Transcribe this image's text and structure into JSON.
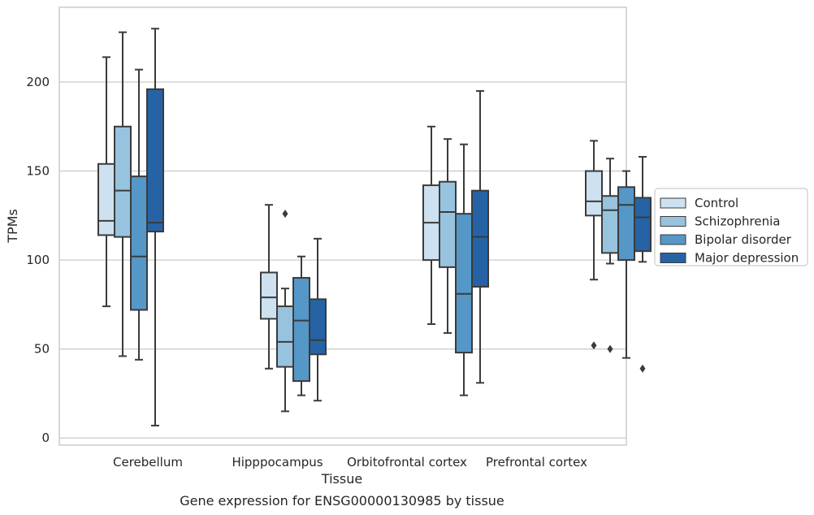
{
  "caption": "Gene expression for ENSG00000130985 by tissue",
  "colors": {
    "Control": "#cde1f0",
    "Schizophrenia": "#97c3df",
    "Bipolar disorder": "#5597c7",
    "Major depression": "#2563a5",
    "grid": "#cccccc",
    "frame": "#cccccc",
    "box_edge": "#3b3b3b"
  },
  "chart_data": {
    "type": "box",
    "xlabel": "Tissue",
    "ylabel": "TPMs",
    "ylim": [
      -4,
      242
    ],
    "yticks": [
      0,
      50,
      100,
      150,
      200
    ],
    "grid": true,
    "legend_position": "right-outside",
    "categories": [
      "Cerebellum",
      "Hipppocampus",
      "Orbitofrontal cortex",
      "Prefrontal cortex"
    ],
    "series": [
      {
        "name": "Control",
        "boxes": [
          {
            "whisker_low": 74,
            "q1": 114,
            "median": 122,
            "q3": 154,
            "whisker_high": 214,
            "outliers": []
          },
          {
            "whisker_low": 39,
            "q1": 67,
            "median": 79,
            "q3": 93,
            "whisker_high": 131,
            "outliers": []
          },
          {
            "whisker_low": 64,
            "q1": 100,
            "median": 121,
            "q3": 142,
            "whisker_high": 175,
            "outliers": []
          },
          {
            "whisker_low": 89,
            "q1": 125,
            "median": 133,
            "q3": 150,
            "whisker_high": 167,
            "outliers": [
              52
            ]
          }
        ]
      },
      {
        "name": "Schizophrenia",
        "boxes": [
          {
            "whisker_low": 46,
            "q1": 113,
            "median": 139,
            "q3": 175,
            "whisker_high": 228,
            "outliers": []
          },
          {
            "whisker_low": 15,
            "q1": 40,
            "median": 54,
            "q3": 74,
            "whisker_high": 84,
            "outliers": [
              126
            ]
          },
          {
            "whisker_low": 59,
            "q1": 96,
            "median": 127,
            "q3": 144,
            "whisker_high": 168,
            "outliers": []
          },
          {
            "whisker_low": 98,
            "q1": 104,
            "median": 128,
            "q3": 136,
            "whisker_high": 157,
            "outliers": [
              50
            ]
          }
        ]
      },
      {
        "name": "Bipolar disorder",
        "boxes": [
          {
            "whisker_low": 44,
            "q1": 72,
            "median": 102,
            "q3": 147,
            "whisker_high": 207,
            "outliers": []
          },
          {
            "whisker_low": 24,
            "q1": 32,
            "median": 66,
            "q3": 90,
            "whisker_high": 102,
            "outliers": []
          },
          {
            "whisker_low": 24,
            "q1": 48,
            "median": 81,
            "q3": 126,
            "whisker_high": 165,
            "outliers": []
          },
          {
            "whisker_low": 45,
            "q1": 100,
            "median": 131,
            "q3": 141,
            "whisker_high": 150,
            "outliers": []
          }
        ]
      },
      {
        "name": "Major depression",
        "boxes": [
          {
            "whisker_low": 7,
            "q1": 116,
            "median": 121,
            "q3": 196,
            "whisker_high": 230,
            "outliers": []
          },
          {
            "whisker_low": 21,
            "q1": 47,
            "median": 55,
            "q3": 78,
            "whisker_high": 112,
            "outliers": []
          },
          {
            "whisker_low": 31,
            "q1": 85,
            "median": 113,
            "q3": 139,
            "whisker_high": 195,
            "outliers": []
          },
          {
            "whisker_low": 99,
            "q1": 105,
            "median": 124,
            "q3": 135,
            "whisker_high": 158,
            "outliers": [
              39
            ]
          }
        ]
      }
    ]
  }
}
